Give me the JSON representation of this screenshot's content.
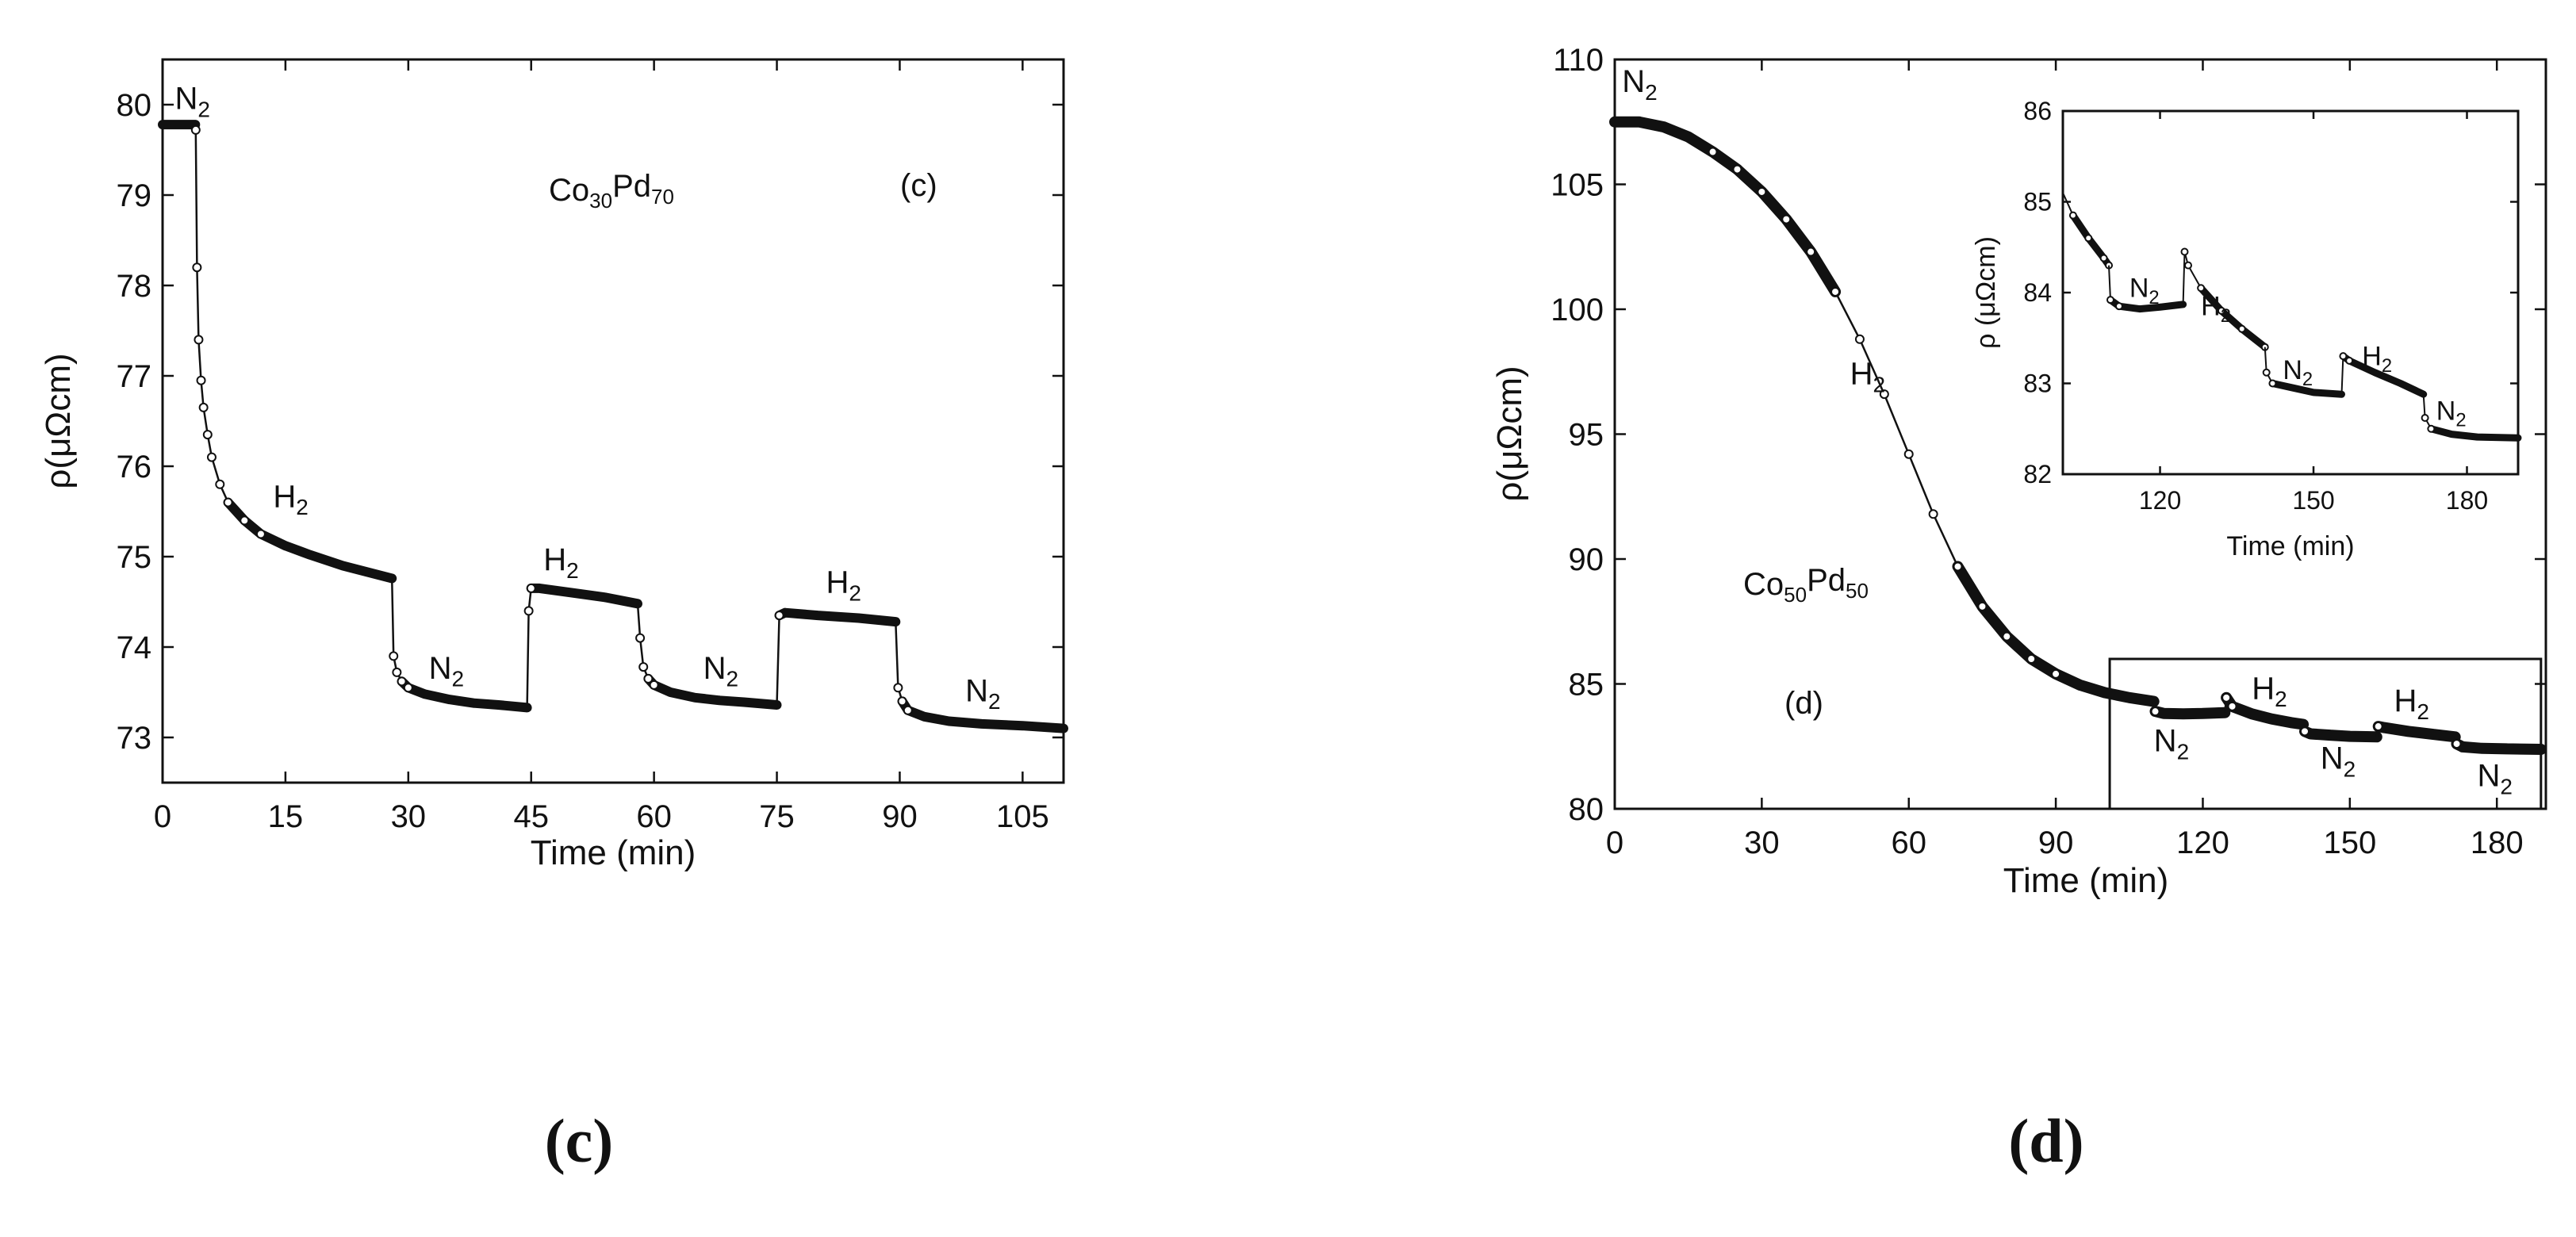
{
  "chart_data": [
    {
      "type": "line",
      "panel_label": "(c)",
      "in_plot_label": "(c)",
      "sample_label": {
        "base": "Co",
        "sub1": "30",
        "mid": "Pd",
        "sub2": "70"
      },
      "xlabel": "Time (min)",
      "ylabel": "ρ(μΩcm)",
      "xlim": [
        0,
        110
      ],
      "ylim": [
        72.5,
        80.5
      ],
      "xticks": [
        0,
        15,
        30,
        45,
        60,
        75,
        90,
        105
      ],
      "yticks": [
        73,
        74,
        75,
        76,
        77,
        78,
        79,
        80
      ],
      "annotations": [
        {
          "text": "N",
          "sub": "2",
          "x": 1.5,
          "y": 79.95
        },
        {
          "text": "H",
          "sub": "2",
          "x": 13.5,
          "y": 75.55
        },
        {
          "text": "N",
          "sub": "2",
          "x": 32.5,
          "y": 73.65
        },
        {
          "text": "H",
          "sub": "2",
          "x": 46.5,
          "y": 74.85
        },
        {
          "text": "N",
          "sub": "2",
          "x": 66.0,
          "y": 73.65
        },
        {
          "text": "H",
          "sub": "2",
          "x": 81.0,
          "y": 74.6
        },
        {
          "text": "N",
          "sub": "2",
          "x": 98.0,
          "y": 73.4
        }
      ],
      "series": [
        {
          "x": [
            0,
            4,
            4.05,
            4.2,
            4.4,
            4.7,
            5.0,
            5.5,
            6.0,
            7.0,
            8.0,
            10.0,
            12.0,
            15.0,
            18.0,
            22.0,
            25.0,
            28.0
          ],
          "y": [
            79.78,
            79.78,
            79.72,
            78.2,
            77.4,
            76.95,
            76.65,
            76.35,
            76.1,
            75.8,
            75.6,
            75.4,
            75.25,
            75.12,
            75.02,
            74.9,
            74.83,
            74.76
          ]
        },
        {
          "x": [
            28.0,
            28.2,
            28.6,
            29.2,
            30.0,
            32.0,
            35.0,
            38.0,
            41.0,
            44.5
          ],
          "y": [
            74.76,
            73.9,
            73.72,
            73.62,
            73.55,
            73.48,
            73.42,
            73.38,
            73.36,
            73.33
          ]
        },
        {
          "x": [
            44.5,
            44.7,
            45.0,
            46.0,
            50.0,
            54.0,
            58.0
          ],
          "y": [
            73.33,
            74.4,
            74.65,
            74.65,
            74.6,
            74.55,
            74.48
          ]
        },
        {
          "x": [
            58.0,
            58.3,
            58.7,
            59.3,
            60.0,
            62.0,
            65.0,
            68.0,
            71.0,
            75.0
          ],
          "y": [
            74.48,
            74.1,
            73.78,
            73.65,
            73.58,
            73.5,
            73.44,
            73.41,
            73.39,
            73.36
          ]
        },
        {
          "x": [
            75.0,
            75.3,
            76.0,
            80.0,
            85.0,
            89.5
          ],
          "y": [
            73.36,
            74.35,
            74.38,
            74.35,
            74.32,
            74.28
          ]
        },
        {
          "x": [
            89.5,
            89.8,
            90.3,
            91.0,
            93.0,
            96.0,
            100.0,
            105.0,
            110.0
          ],
          "y": [
            74.28,
            73.55,
            73.4,
            73.3,
            73.23,
            73.18,
            73.15,
            73.13,
            73.1
          ]
        }
      ]
    },
    {
      "type": "line",
      "panel_label": "(d)",
      "in_plot_label": "(d)",
      "sample_label": {
        "base": "Co",
        "sub1": "50",
        "mid": "Pd",
        "sub2": "50"
      },
      "xlabel": "Time (min)",
      "ylabel": "ρ(μΩcm)",
      "xlim": [
        0,
        190
      ],
      "ylim": [
        80,
        110
      ],
      "xticks": [
        0,
        30,
        60,
        90,
        120,
        150,
        180
      ],
      "yticks": [
        80,
        85,
        90,
        95,
        100,
        105,
        110
      ],
      "annotations": [
        {
          "text": "N",
          "sub": "2",
          "x": 1.5,
          "y": 108.7
        },
        {
          "text": "H",
          "sub": "2",
          "x": 48.0,
          "y": 97.0
        },
        {
          "text": "N",
          "sub": "2",
          "x": 110.0,
          "y": 82.3
        },
        {
          "text": "H",
          "sub": "2",
          "x": 130.0,
          "y": 84.4
        },
        {
          "text": "N",
          "sub": "2",
          "x": 144.0,
          "y": 81.6
        },
        {
          "text": "H",
          "sub": "2",
          "x": 159.0,
          "y": 83.9
        },
        {
          "text": "N",
          "sub": "2",
          "x": 176.0,
          "y": 80.9
        }
      ],
      "zoom_box": {
        "x": [
          101,
          189
        ],
        "y": [
          80,
          86
        ]
      },
      "series": [
        {
          "x": [
            0,
            5,
            10,
            15,
            20,
            25,
            30,
            35,
            40,
            45,
            50,
            55,
            60,
            65,
            70,
            75,
            80,
            85,
            90,
            95,
            100,
            105,
            110
          ],
          "y": [
            107.5,
            107.5,
            107.3,
            106.9,
            106.3,
            105.6,
            104.7,
            103.6,
            102.3,
            100.7,
            98.8,
            96.6,
            94.2,
            91.8,
            89.7,
            88.1,
            86.9,
            86.0,
            85.4,
            84.95,
            84.65,
            84.45,
            84.3
          ]
        },
        {
          "x": [
            110,
            110.3,
            112,
            116,
            120,
            124.5
          ],
          "y": [
            84.3,
            83.9,
            83.82,
            83.8,
            83.82,
            83.85
          ]
        },
        {
          "x": [
            124.5,
            124.8,
            126,
            130,
            134,
            138,
            140.5
          ],
          "y": [
            83.85,
            84.45,
            84.1,
            83.8,
            83.6,
            83.45,
            83.38
          ]
        },
        {
          "x": [
            140.5,
            140.8,
            142,
            146,
            150,
            155.5
          ],
          "y": [
            83.38,
            83.1,
            83.0,
            82.95,
            82.9,
            82.88
          ]
        },
        {
          "x": [
            155.5,
            155.8,
            157,
            162,
            167,
            171.5
          ],
          "y": [
            82.88,
            83.3,
            83.25,
            83.1,
            82.98,
            82.88
          ]
        },
        {
          "x": [
            171.5,
            171.8,
            173,
            177,
            182,
            189
          ],
          "y": [
            82.88,
            82.6,
            82.48,
            82.42,
            82.4,
            82.38
          ]
        }
      ],
      "inset": {
        "xlabel": "Time (min)",
        "ylabel": "ρ (μΩcm)",
        "xlim": [
          101,
          190
        ],
        "ylim": [
          82,
          86
        ],
        "xticks": [
          120,
          150,
          180
        ],
        "yticks": [
          82,
          83,
          84,
          85,
          86
        ],
        "annotations": [
          {
            "text": "N",
            "sub": "2",
            "x": 114.0,
            "y": 83.95
          },
          {
            "text": "H",
            "sub": "2",
            "x": 128.0,
            "y": 83.75
          },
          {
            "text": "N",
            "sub": "2",
            "x": 144.0,
            "y": 83.05
          },
          {
            "text": "H",
            "sub": "2",
            "x": 159.5,
            "y": 83.2
          },
          {
            "text": "N",
            "sub": "2",
            "x": 174.0,
            "y": 82.6
          }
        ],
        "series": [
          {
            "x": [
              101,
              103,
              106,
              109,
              110
            ],
            "y": [
              85.1,
              84.85,
              84.6,
              84.38,
              84.3
            ]
          },
          {
            "x": [
              110,
              110.3,
              112,
              116,
              120,
              124.5
            ],
            "y": [
              84.3,
              83.92,
              83.85,
              83.82,
              83.84,
              83.87
            ]
          },
          {
            "x": [
              124.5,
              124.8,
              125.5,
              128,
              132,
              136,
              140.5
            ],
            "y": [
              83.87,
              84.45,
              84.3,
              84.05,
              83.8,
              83.6,
              83.4
            ]
          },
          {
            "x": [
              140.5,
              140.8,
              142,
              146,
              150,
              155.5
            ],
            "y": [
              83.4,
              83.12,
              83.0,
              82.95,
              82.9,
              82.88
            ]
          },
          {
            "x": [
              155.5,
              155.8,
              157,
              162,
              167,
              171.5
            ],
            "y": [
              82.88,
              83.3,
              83.25,
              83.12,
              83.0,
              82.88
            ]
          },
          {
            "x": [
              171.5,
              171.8,
              173,
              177,
              182,
              190
            ],
            "y": [
              82.88,
              82.62,
              82.5,
              82.44,
              82.41,
              82.4
            ]
          }
        ]
      }
    }
  ]
}
